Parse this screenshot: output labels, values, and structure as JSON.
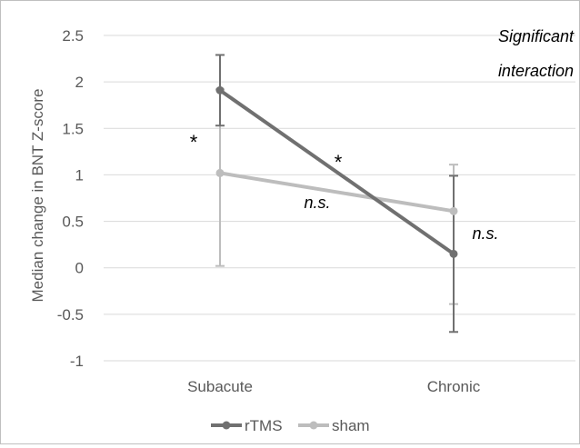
{
  "chart_data": {
    "type": "line",
    "title": "",
    "xlabel": "",
    "ylabel": "Median change in BNT Z-score",
    "ylim": [
      -1,
      2.5
    ],
    "yticks": [
      2.5,
      2,
      1.5,
      1,
      0.5,
      0,
      -0.5,
      -1
    ],
    "yticks_labels": [
      "2.5",
      "2",
      "1.5",
      "1",
      "0.5",
      "0",
      "-0.5",
      "-1"
    ],
    "grid": true,
    "legend_position": "bottom",
    "categories": [
      "Subacute",
      "Chronic"
    ],
    "series": [
      {
        "name": "rTMS",
        "color": "#707070",
        "values": [
          1.91,
          0.15
        ],
        "error_low": [
          1.53,
          -0.69
        ],
        "error_high": [
          2.29,
          0.99
        ]
      },
      {
        "name": "sham",
        "color": "#bdbdbd",
        "values": [
          1.02,
          0.61
        ],
        "error_low": [
          0.02,
          -0.39
        ],
        "error_high": [
          1.92,
          1.11
        ]
      }
    ],
    "annotations": {
      "interaction_line1": "Significant",
      "interaction_line2": "interaction",
      "star_subacute": "*",
      "star_rtms_slope": "*",
      "ns_sham_slope": "n.s.",
      "ns_chronic": "n.s."
    }
  }
}
